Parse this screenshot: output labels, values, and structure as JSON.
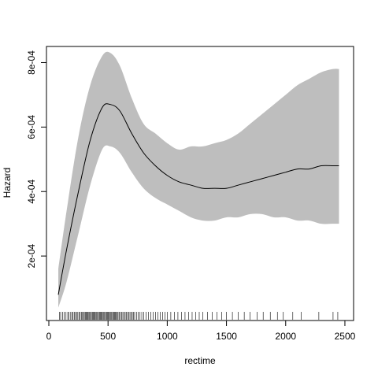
{
  "chart_data": {
    "type": "area",
    "xlabel": "rectime",
    "ylabel": "Hazard",
    "xlim": [
      0,
      2500
    ],
    "ylim": [
      0,
      0.00085
    ],
    "x_ticks": [
      0,
      500,
      1000,
      1500,
      2000,
      2500
    ],
    "x_tick_labels": [
      "0",
      "500",
      "1000",
      "1500",
      "2000",
      "2500"
    ],
    "y_ticks": [
      0.0002,
      0.0004,
      0.0006,
      0.0008
    ],
    "y_tick_labels": [
      "2e-04",
      "4e-04",
      "6e-04",
      "8e-04"
    ],
    "grid": false,
    "legend": "none",
    "colors": {
      "band": "#bebebe",
      "line": "#000000",
      "axis": "#000000"
    },
    "series": [
      {
        "role": "estimate",
        "x": [
          80,
          150,
          250,
          350,
          450,
          520,
          600,
          700,
          800,
          900,
          1000,
          1100,
          1200,
          1300,
          1400,
          1500,
          1600,
          1700,
          1800,
          1900,
          2000,
          2100,
          2200,
          2300,
          2400,
          2450
        ],
        "y": [
          8e-05,
          0.00022,
          0.0004,
          0.00056,
          0.00066,
          0.00067,
          0.00065,
          0.00058,
          0.00052,
          0.00048,
          0.00045,
          0.00043,
          0.00042,
          0.00041,
          0.00041,
          0.00041,
          0.00042,
          0.00043,
          0.00044,
          0.00045,
          0.00046,
          0.00047,
          0.00047,
          0.00048,
          0.00048,
          0.00048
        ]
      },
      {
        "role": "upper",
        "x": [
          80,
          150,
          250,
          350,
          450,
          520,
          600,
          700,
          800,
          900,
          1000,
          1100,
          1200,
          1300,
          1400,
          1500,
          1600,
          1700,
          1800,
          1900,
          2000,
          2100,
          2200,
          2300,
          2400,
          2450
        ],
        "y": [
          0.00016,
          0.00034,
          0.00057,
          0.00073,
          0.00082,
          0.00083,
          0.00079,
          0.00069,
          0.00061,
          0.00058,
          0.00055,
          0.00053,
          0.00054,
          0.00054,
          0.00055,
          0.00056,
          0.00058,
          0.00061,
          0.00064,
          0.00067,
          0.0007,
          0.00073,
          0.00075,
          0.00077,
          0.00078,
          0.00078
        ]
      },
      {
        "role": "lower",
        "x": [
          80,
          150,
          250,
          350,
          450,
          520,
          600,
          700,
          800,
          900,
          1000,
          1100,
          1200,
          1300,
          1400,
          1500,
          1600,
          1700,
          1800,
          1900,
          2000,
          2100,
          2200,
          2300,
          2400,
          2450
        ],
        "y": [
          4e-05,
          0.00012,
          0.00027,
          0.00042,
          0.00053,
          0.00054,
          0.00052,
          0.00046,
          0.00041,
          0.00038,
          0.00036,
          0.00034,
          0.00032,
          0.00031,
          0.00031,
          0.00032,
          0.00032,
          0.00033,
          0.00033,
          0.00032,
          0.00032,
          0.00031,
          0.00031,
          0.0003,
          0.0003,
          0.0003
        ]
      }
    ],
    "rug": [
      90,
      100,
      115,
      130,
      145,
      160,
      170,
      185,
      195,
      205,
      215,
      225,
      235,
      245,
      255,
      265,
      275,
      285,
      292,
      300,
      308,
      315,
      322,
      330,
      338,
      345,
      352,
      360,
      368,
      375,
      382,
      390,
      398,
      405,
      412,
      420,
      428,
      435,
      442,
      450,
      458,
      465,
      472,
      480,
      488,
      495,
      502,
      510,
      518,
      525,
      532,
      540,
      548,
      555,
      562,
      570,
      578,
      585,
      595,
      605,
      615,
      625,
      635,
      645,
      655,
      665,
      675,
      685,
      695,
      705,
      715,
      725,
      740,
      755,
      770,
      785,
      800,
      820,
      840,
      860,
      880,
      900,
      920,
      940,
      960,
      980,
      1000,
      1030,
      1060,
      1090,
      1120,
      1150,
      1180,
      1210,
      1240,
      1270,
      1300,
      1340,
      1380,
      1420,
      1460,
      1500,
      1550,
      1600,
      1650,
      1700,
      1760,
      1810,
      1870,
      1930,
      1980,
      2060,
      2130,
      2280,
      2400,
      2440
    ]
  }
}
